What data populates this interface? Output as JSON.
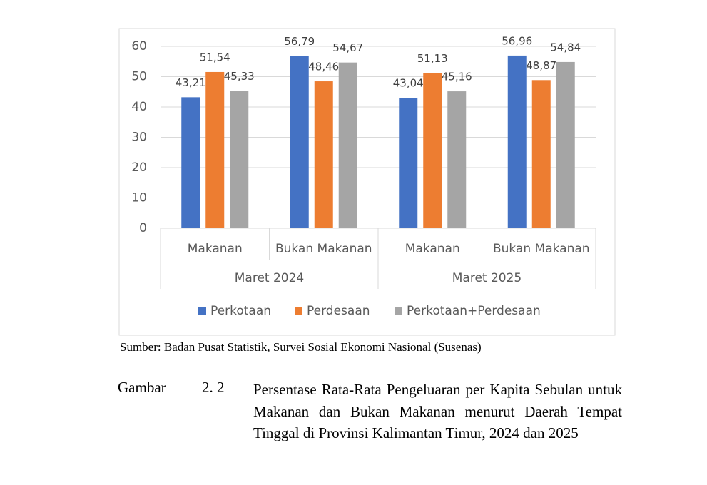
{
  "chart_data": {
    "type": "bar",
    "categories": [
      "Makanan",
      "Bukan Makanan",
      "Makanan",
      "Bukan Makanan"
    ],
    "category_groups": [
      "Maret 2024",
      "Maret 2025"
    ],
    "series": [
      {
        "name": "Perkotaan",
        "color": "#4472c4",
        "values": [
          43.21,
          56.79,
          43.04,
          56.96
        ],
        "value_labels": [
          "43,21",
          "56,79",
          "43,04",
          "56,96"
        ]
      },
      {
        "name": "Perdesaan",
        "color": "#ed7d31",
        "values": [
          51.54,
          48.46,
          51.13,
          48.87
        ],
        "value_labels": [
          "51,54",
          "48,46",
          "51,13",
          "48,87"
        ]
      },
      {
        "name": "Perkotaan+Perdesaan",
        "color": "#a5a5a5",
        "values": [
          45.33,
          54.67,
          45.16,
          54.84
        ],
        "value_labels": [
          "45,33",
          "54,67",
          "45,16",
          "54,84"
        ]
      }
    ],
    "ylim": [
      0,
      60
    ],
    "yticks": [
      0,
      10,
      20,
      30,
      40,
      50,
      60
    ],
    "grid": true,
    "legend": "bottom"
  },
  "source": "Sumber: Badan Pusat Statistik, Survei Sosial Ekonomi Nasional (Susenas)",
  "caption": {
    "label": "Gambar",
    "number": "2. 2",
    "text": "Persentase Rata-Rata Pengeluaran per Kapita Sebulan untuk Makanan dan Bukan Makanan menurut Daerah Tempat Tinggal di Provinsi Kalimantan Timur, 2024 dan 2025"
  }
}
